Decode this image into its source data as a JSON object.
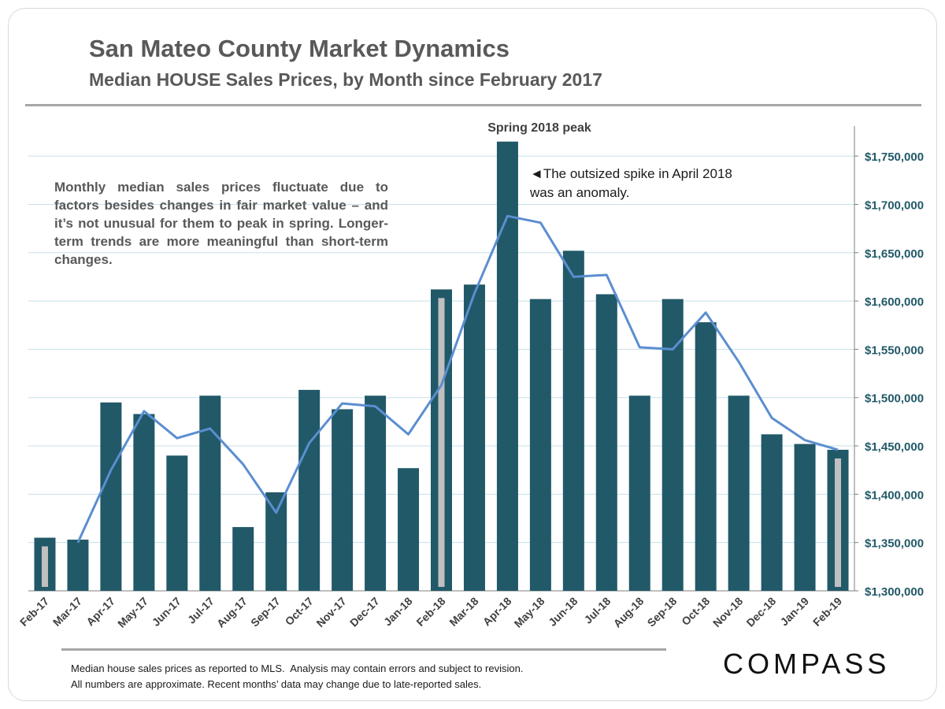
{
  "header": {
    "title": "San Mateo County Market Dynamics",
    "subtitle": "Median HOUSE  Sales Prices, by Month since February 2017"
  },
  "annotations": {
    "note": "Monthly median sales prices fluctuate due to factors besides changes in fair market value – and it’s not unusual for them to peak in spring. Longer-term trends are more meaningful than short-term changes.",
    "spike_line1": "◄The outsized spike in April 2018",
    "spike_line2": "was an anomaly.",
    "peak_label": "Spring 2018 peak"
  },
  "footer": {
    "line1": "Median house sales prices as reported to MLS.  Analysis may contain errors and subject to revision.",
    "line2": "All numbers are approximate. Recent months’ data may change due to late-reported sales."
  },
  "logo": {
    "text": "COMPASS"
  },
  "colors": {
    "bar": "#215968",
    "highlight_bar": "#c0c0c0",
    "line": "#5b8ed0",
    "grid": "#c6e0ea",
    "axis_text": "#215968",
    "category_text": "#404040"
  },
  "chart_data": {
    "type": "bar",
    "categories": [
      "Feb-17",
      "Mar-17",
      "Apr-17",
      "May-17",
      "Jun-17",
      "Jul-17",
      "Aug-17",
      "Sep-17",
      "Oct-17",
      "Nov-17",
      "Dec-17",
      "Jan-18",
      "Feb-18",
      "Mar-18",
      "Apr-18",
      "May-18",
      "Jun-18",
      "Jul-18",
      "Aug-18",
      "Sep-18",
      "Oct-18",
      "Nov-18",
      "Dec-18",
      "Jan-19",
      "Feb-19"
    ],
    "series": [
      {
        "type": "bar",
        "values": [
          1355000,
          1353000,
          1495000,
          1483000,
          1440000,
          1502000,
          1366000,
          1402000,
          1508000,
          1488000,
          1502000,
          1427000,
          1612000,
          1617000,
          1765000,
          1602000,
          1652000,
          1607000,
          1502000,
          1602000,
          1578000,
          1502000,
          1462000,
          1452000,
          1446000
        ]
      },
      {
        "type": "line",
        "values": [
          null,
          1350000,
          1425000,
          1486000,
          1458000,
          1468000,
          1431000,
          1381000,
          1453000,
          1494000,
          1491000,
          1462000,
          1513000,
          1608000,
          1688000,
          1681000,
          1625000,
          1627000,
          1552000,
          1550000,
          1588000,
          1537000,
          1479000,
          1456000,
          1446000
        ]
      }
    ],
    "highlighted_categories": [
      "Feb-17",
      "Feb-18",
      "Feb-19"
    ],
    "y_ticks": [
      "$1,300,000",
      "$1,350,000",
      "$1,400,000",
      "$1,450,000",
      "$1,500,000",
      "$1,550,000",
      "$1,600,000",
      "$1,650,000",
      "$1,700,000",
      "$1,750,000"
    ],
    "ylim": [
      1300000,
      1760000
    ],
    "y_axis_side": "right",
    "grid": true
  }
}
